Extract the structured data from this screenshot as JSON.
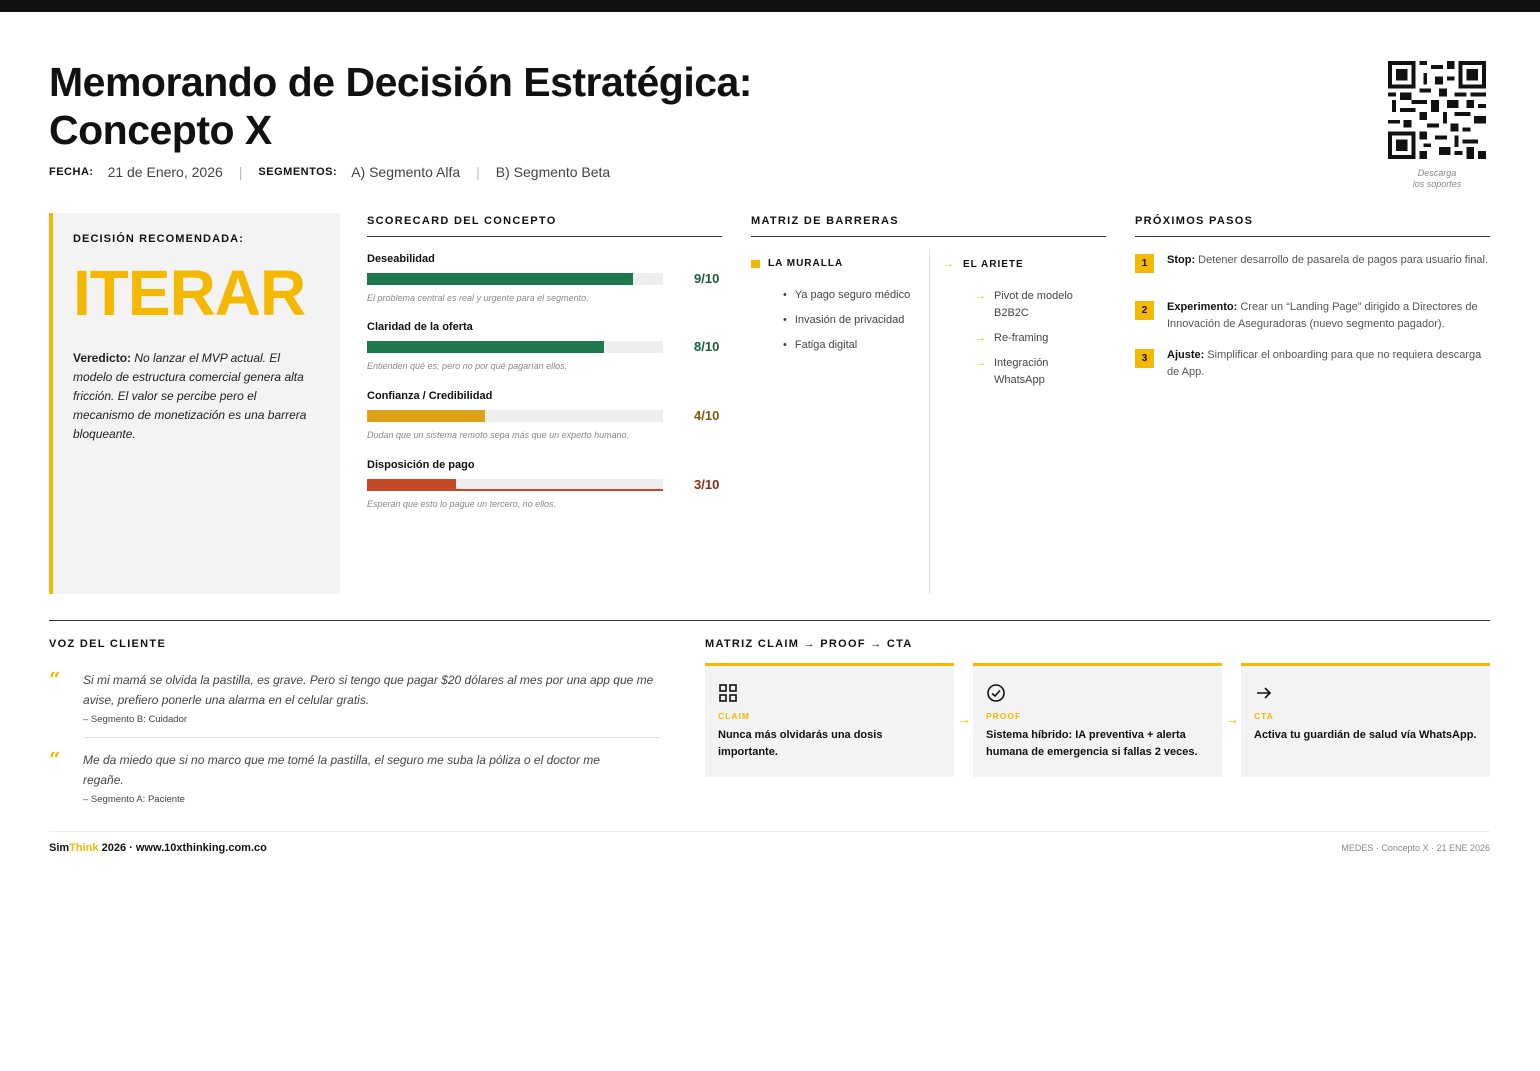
{
  "header": {
    "title_line1": "Memorando de Decisión Estratégica:",
    "title_line2": "Concepto X",
    "fecha_label": "FECHA:",
    "fecha_value": "21 de Enero, 2026",
    "segmentos_label": "SEGMENTOS:",
    "segment_a": "A) Segmento Alfa",
    "segment_b": "B) Segmento Beta",
    "qr_caption_1": "Descarga",
    "qr_caption_2": "los soportes"
  },
  "decision": {
    "label": "DECISIÓN RECOMENDADA:",
    "value": "ITERAR",
    "verdict_label": "Veredicto:",
    "verdict_text": "No lanzar el MVP actual. El modelo de estructura comercial genera alta fricción. El valor se percibe pero el mecanismo de monetización es una barrera bloqueante."
  },
  "scorecard": {
    "title": "SCORECARD DEL CONCEPTO",
    "items": [
      {
        "name": "Deseabilidad",
        "score": 9,
        "score_text": "9/10",
        "note": "El problema central es real y urgente para el segmento.",
        "color": "#1e7a4e"
      },
      {
        "name": "Claridad de la oferta",
        "score": 8,
        "score_text": "8/10",
        "note": "Entienden qué es, pero no por qué pagarían ellos.",
        "color": "#1e7a4e"
      },
      {
        "name": "Confianza / Credibilidad",
        "score": 4,
        "score_text": "4/10",
        "note": "Dudan que un sistema remoto sepa más que un experto humano.",
        "color": "#e0a21b"
      },
      {
        "name": "Disposición de pago",
        "score": 3,
        "score_text": "3/10",
        "note": "Esperan que esto lo pague un tercero, no ellos.",
        "color": "#c44a2a"
      }
    ]
  },
  "barriers": {
    "title": "MATRIZ DE BARRERAS",
    "wall": {
      "title": "LA MURALLA",
      "items": [
        "Ya pago seguro médico",
        "Invasión de privacidad",
        "Fatiga digital"
      ]
    },
    "ram": {
      "title": "EL ARIETE",
      "items": [
        "Pivot de modelo B2B2C",
        "Re-framing",
        "Integración WhatsApp"
      ]
    }
  },
  "next_steps": {
    "title": "PRÓXIMOS PASOS",
    "items": [
      {
        "num": "1",
        "label": "Stop:",
        "text": "Detener desarrollo de pasarela de pagos para usuario final."
      },
      {
        "num": "2",
        "label": "Experimento:",
        "text": "Crear un “Landing Page” dirigido a Directores de Innovación de Aseguradoras (nuevo segmento pagador)."
      },
      {
        "num": "3",
        "label": "Ajuste:",
        "text": "Simplificar el onboarding para que no requiera descarga de App."
      }
    ]
  },
  "voice": {
    "title": "VOZ DEL CLIENTE",
    "quotes": [
      {
        "text": "Si mi mamá se olvida la pastilla, es grave. Pero si tengo que pagar $20 dólares al mes por una app que me avise, prefiero ponerle una alarma en el celular gratis.",
        "author": "– Segmento B: Cuidador"
      },
      {
        "text": "Me da miedo que si no marco que me tomé la pastilla, el seguro me suba la póliza o el doctor me regañe.",
        "author": "– Segmento A: Paciente"
      }
    ]
  },
  "claim_matrix": {
    "title": "MATRIZ CLAIM → PROOF → CTA",
    "cards": [
      {
        "icon": "grid-icon",
        "label": "CLAIM",
        "text": "Nunca más olvidarás una dosis importante."
      },
      {
        "icon": "check-circle-icon",
        "label": "PROOF",
        "text": "Sistema híbrido: IA preventiva + alerta humana de emergencia si fallas 2 veces."
      },
      {
        "icon": "arrow-right-icon",
        "label": "CTA",
        "text": "Activa tu guardián de salud vía WhatsApp."
      }
    ]
  },
  "footer": {
    "brand_a": "Sim",
    "brand_b": "Think",
    "brand_rest": " 2026 · www.10xthinking.com.co",
    "right": "MEDES · Concepto X · 21 ENE 2026"
  }
}
